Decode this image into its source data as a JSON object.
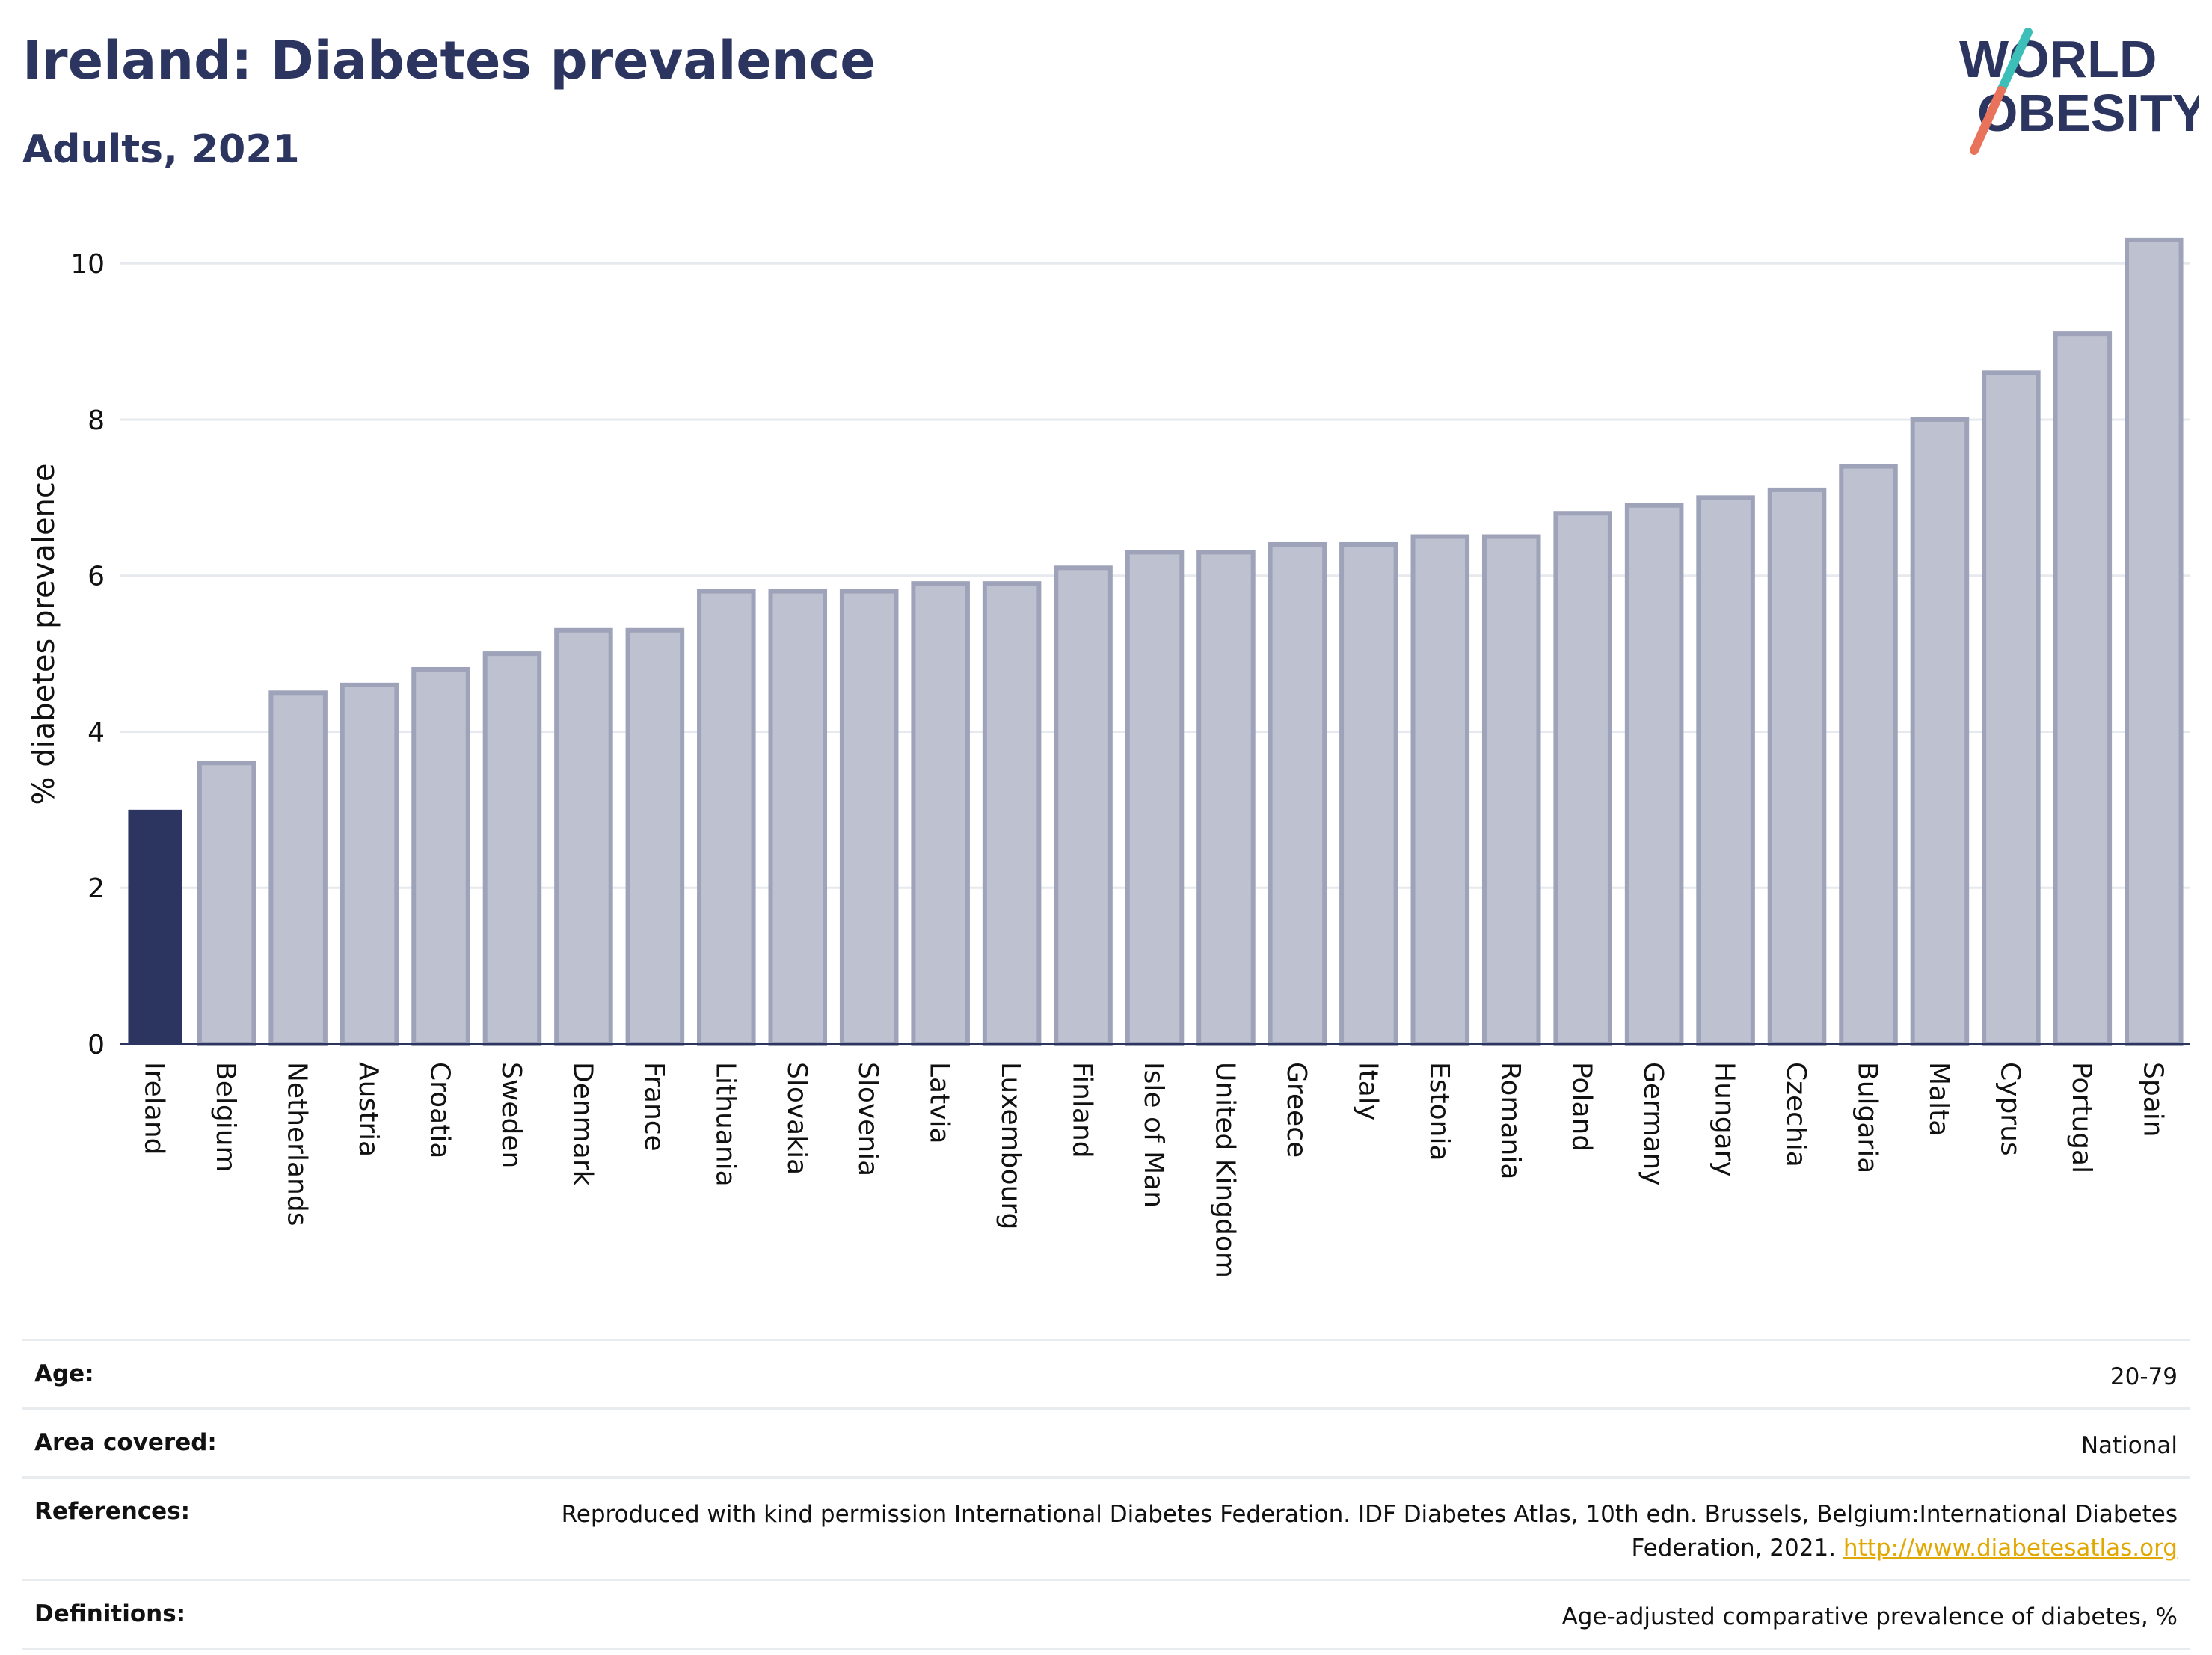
{
  "header": {
    "title": "Ireland: Diabetes prevalence",
    "subtitle": "Adults, 2021"
  },
  "logo": {
    "line1": "WORLD",
    "line2": "OBESITY",
    "colors": {
      "text": "#2b3560",
      "slash_teal": "#3bbfb8",
      "slash_coral": "#e8735a"
    }
  },
  "chart_data": {
    "type": "bar",
    "title": "Ireland: Diabetes prevalence",
    "subtitle": "Adults, 2021",
    "xlabel": "",
    "ylabel": "% diabetes prevalence",
    "ylim": [
      0,
      10.5
    ],
    "yticks": [
      0,
      2,
      4,
      6,
      8,
      10
    ],
    "grid": true,
    "highlight": "Ireland",
    "colors": {
      "highlight": "#2b3560",
      "bar_fill": "#bec1cf",
      "bar_stroke": "#9ea3ba"
    },
    "categories": [
      "Ireland",
      "Belgium",
      "Netherlands",
      "Austria",
      "Croatia",
      "Sweden",
      "Denmark",
      "France",
      "Lithuania",
      "Slovakia",
      "Slovenia",
      "Latvia",
      "Luxembourg",
      "Finland",
      "Isle of Man",
      "United Kingdom",
      "Greece",
      "Italy",
      "Estonia",
      "Romania",
      "Poland",
      "Germany",
      "Hungary",
      "Czechia",
      "Bulgaria",
      "Malta",
      "Cyprus",
      "Portugal",
      "Spain"
    ],
    "values": [
      3.0,
      3.6,
      4.5,
      4.6,
      4.8,
      5.0,
      5.3,
      5.3,
      5.8,
      5.8,
      5.8,
      5.9,
      5.9,
      6.1,
      6.3,
      6.3,
      6.4,
      6.4,
      6.5,
      6.5,
      6.8,
      6.9,
      7.0,
      7.1,
      7.4,
      8.0,
      8.6,
      9.1,
      10.3
    ]
  },
  "meta": {
    "age_label": "Age:",
    "age_value": "20-79",
    "area_label": "Area covered:",
    "area_value": "National",
    "references_label": "References:",
    "references_text": "Reproduced with kind permission International Diabetes Federation.  IDF Diabetes Atlas, 10th edn. Brussels, Belgium:International Diabetes Federation, 2021.",
    "references_link": "http://www.diabetesatlas.org",
    "definitions_label": "Definitions:",
    "definitions_value": "Age-adjusted comparative prevalence of diabetes, %"
  }
}
